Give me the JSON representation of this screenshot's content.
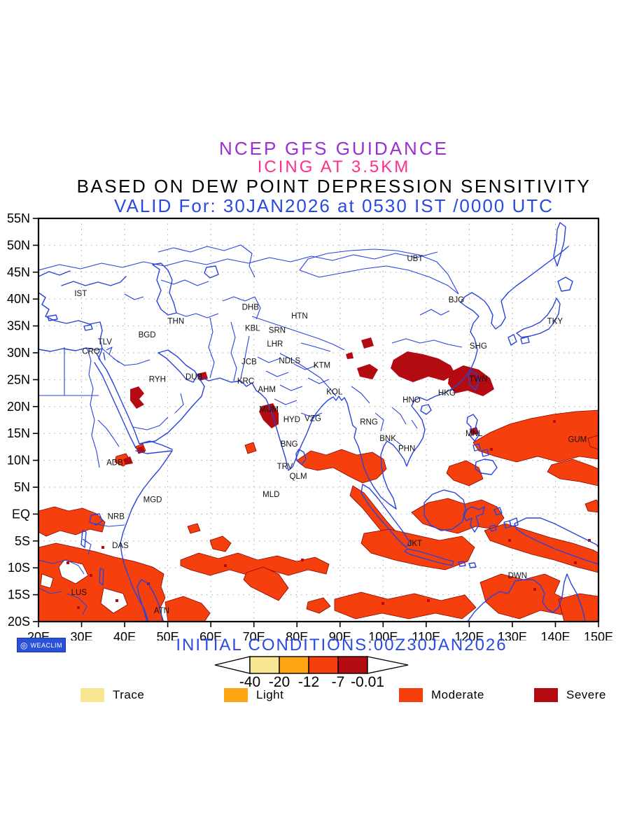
{
  "header": {
    "line1": "NCEP GFS GUIDANCE",
    "line2": "ICING AT 3.5KM",
    "line3": "BASED ON DEW POINT DEPRESSION SENSITIVITY",
    "line4": "VALID For: 30JAN2026 at 0530 IST /0000 UTC"
  },
  "palette": {
    "title1": "#9B2FD6",
    "title2": "#FF2E8B",
    "title3": "#000000",
    "blue_text": "#2B4BE0",
    "map_line": "#2843DC",
    "grid_dot": "#A8A8A8",
    "trace": "#F7E793",
    "light": "#FFA414",
    "moderate": "#F5400E",
    "severe": "#B40A12",
    "severe_edge": "#8B0000",
    "logo_bg": "#2A52D8",
    "logo_fg": "#FFFFFF"
  },
  "map": {
    "extent": {
      "lon_min": 20,
      "lon_max": 150,
      "lat_min": -20,
      "lat_max": 55
    },
    "lon_ticks": [
      {
        "label": "20E",
        "value": 20
      },
      {
        "label": "30E",
        "value": 30
      },
      {
        "label": "40E",
        "value": 40
      },
      {
        "label": "50E",
        "value": 50
      },
      {
        "label": "60E",
        "value": 60
      },
      {
        "label": "70E",
        "value": 70
      },
      {
        "label": "80E",
        "value": 80
      },
      {
        "label": "90E",
        "value": 90
      },
      {
        "label": "100E",
        "value": 100
      },
      {
        "label": "110E",
        "value": 110
      },
      {
        "label": "120E",
        "value": 120
      },
      {
        "label": "130E",
        "value": 130
      },
      {
        "label": "140E",
        "value": 140
      },
      {
        "label": "150E",
        "value": 150
      }
    ],
    "lat_ticks": [
      {
        "label": "55N",
        "value": 55
      },
      {
        "label": "50N",
        "value": 50
      },
      {
        "label": "45N",
        "value": 45
      },
      {
        "label": "40N",
        "value": 40
      },
      {
        "label": "35N",
        "value": 35
      },
      {
        "label": "30N",
        "value": 30
      },
      {
        "label": "25N",
        "value": 25
      },
      {
        "label": "20N",
        "value": 20
      },
      {
        "label": "15N",
        "value": 15
      },
      {
        "label": "10N",
        "value": 10
      },
      {
        "label": "5N",
        "value": 5
      },
      {
        "label": "EQ",
        "value": 0
      },
      {
        "label": "5S",
        "value": -5
      },
      {
        "label": "10S",
        "value": -10
      },
      {
        "label": "15S",
        "value": -15
      },
      {
        "label": "20S",
        "value": -20
      }
    ],
    "stations": [
      {
        "label": "IST",
        "lon": 29.8,
        "lat": 41.1
      },
      {
        "label": "THN",
        "lon": 51.9,
        "lat": 35.9
      },
      {
        "label": "BGD",
        "lon": 45.2,
        "lat": 33.4
      },
      {
        "label": "TLV",
        "lon": 35.4,
        "lat": 32.1
      },
      {
        "label": "CRO",
        "lon": 32.2,
        "lat": 30.3
      },
      {
        "label": "RYH",
        "lon": 47.6,
        "lat": 25.1
      },
      {
        "label": "DUB",
        "lon": 56.1,
        "lat": 25.6
      },
      {
        "label": "ADB",
        "lon": 37.7,
        "lat": 9.6
      },
      {
        "label": "MGD",
        "lon": 46.5,
        "lat": 2.7
      },
      {
        "label": "NRB",
        "lon": 38.0,
        "lat": -0.4
      },
      {
        "label": "DAS",
        "lon": 39.0,
        "lat": -5.8
      },
      {
        "label": "LUS",
        "lon": 29.4,
        "lat": -14.5
      },
      {
        "label": "ATN",
        "lon": 48.6,
        "lat": -17.9
      },
      {
        "label": "DHB",
        "lon": 69.2,
        "lat": 38.5
      },
      {
        "label": "KBL",
        "lon": 69.7,
        "lat": 34.6
      },
      {
        "label": "SRN",
        "lon": 75.4,
        "lat": 34.2
      },
      {
        "label": "LHR",
        "lon": 74.9,
        "lat": 31.7
      },
      {
        "label": "HTN",
        "lon": 80.6,
        "lat": 36.9
      },
      {
        "label": "JCB",
        "lon": 68.9,
        "lat": 28.4
      },
      {
        "label": "NDLS",
        "lon": 78.3,
        "lat": 28.6
      },
      {
        "label": "KTM",
        "lon": 85.8,
        "lat": 27.7
      },
      {
        "label": "KRC",
        "lon": 68.1,
        "lat": 24.8
      },
      {
        "label": "AHM",
        "lon": 73.0,
        "lat": 23.2
      },
      {
        "label": "KOL",
        "lon": 88.7,
        "lat": 22.8
      },
      {
        "label": "MUM",
        "lon": 73.5,
        "lat": 19.5
      },
      {
        "label": "HYD",
        "lon": 78.8,
        "lat": 17.6
      },
      {
        "label": "VZG",
        "lon": 83.7,
        "lat": 17.8
      },
      {
        "label": "RNG",
        "lon": 96.7,
        "lat": 17.2
      },
      {
        "label": "BNG",
        "lon": 78.2,
        "lat": 13.1
      },
      {
        "label": "TRV",
        "lon": 77.2,
        "lat": 8.9
      },
      {
        "label": "QLM",
        "lon": 80.3,
        "lat": 7.1
      },
      {
        "label": "MLD",
        "lon": 74.0,
        "lat": 3.7
      },
      {
        "label": "BNK",
        "lon": 101.1,
        "lat": 14.1
      },
      {
        "label": "PHN",
        "lon": 105.5,
        "lat": 12.2
      },
      {
        "label": "HNO",
        "lon": 106.6,
        "lat": 21.3
      },
      {
        "label": "MNL",
        "lon": 121.1,
        "lat": 15.0
      },
      {
        "label": "UBT",
        "lon": 107.4,
        "lat": 47.6
      },
      {
        "label": "BJG",
        "lon": 117.0,
        "lat": 39.9
      },
      {
        "label": "SHG",
        "lon": 122.1,
        "lat": 31.3
      },
      {
        "label": "TWN",
        "lon": 122.1,
        "lat": 25.2
      },
      {
        "label": "HKG",
        "lon": 114.8,
        "lat": 22.6
      },
      {
        "label": "TKY",
        "lon": 139.9,
        "lat": 35.9
      },
      {
        "label": "GUM",
        "lon": 145.1,
        "lat": 13.9
      },
      {
        "label": "JKT",
        "lon": 107.4,
        "lat": -5.4
      },
      {
        "label": "DWN",
        "lon": 131.2,
        "lat": -11.4
      }
    ]
  },
  "footer": {
    "logo_text": "WEACLIM",
    "initial_conditions": "INITIAL CONDITIONS:00Z30JAN2026"
  },
  "colorbar": {
    "labels": [
      "-40",
      "-20",
      "-12",
      "-7",
      "-0.01"
    ],
    "cells": [
      "trace",
      "light",
      "moderate",
      "severe"
    ]
  },
  "legend": [
    {
      "label": "Trace",
      "color_key": "trace"
    },
    {
      "label": "Light",
      "color_key": "light"
    },
    {
      "label": "Moderate",
      "color_key": "moderate"
    },
    {
      "label": "Severe",
      "color_key": "severe"
    }
  ]
}
